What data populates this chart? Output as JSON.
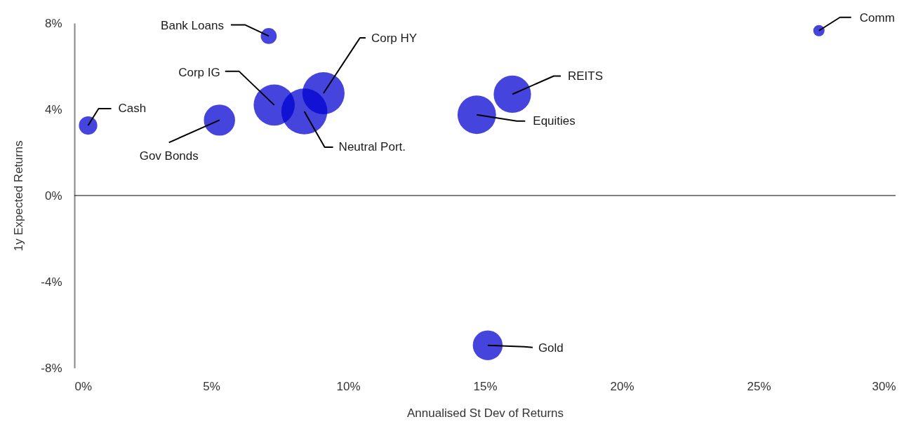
{
  "chart_data": {
    "type": "bubble",
    "xlabel": "Annualised St Dev of Returns",
    "ylabel": "1y Expected Returns",
    "x": [
      0.5,
      5.3,
      7.1,
      7.3,
      8.4,
      9.1,
      14.7,
      16.0,
      27.2,
      15.1
    ],
    "series": [
      {
        "color": "#0000d0",
        "values": [
          3.25,
          3.5,
          7.4,
          4.2,
          3.9,
          4.75,
          3.75,
          4.7,
          7.65,
          -6.95
        ],
        "sizes": [
          0.16,
          0.46,
          0.12,
          0.8,
          1,
          0.84,
          0.7,
          0.66,
          0.06,
          0.42
        ]
      }
    ],
    "annotations": [
      {
        "text": "Cash",
        "x": 0.5,
        "y": 3.25
      },
      {
        "text": "Gov Bonds",
        "x": 5.3,
        "y": 3.5
      },
      {
        "text": "Bank Loans",
        "x": 7.1,
        "y": 7.4
      },
      {
        "text": "Corp IG",
        "x": 7.3,
        "y": 4.2
      },
      {
        "text": "Neutral Port.",
        "x": 8.4,
        "y": 3.9
      },
      {
        "text": "Corp HY",
        "x": 9.1,
        "y": 4.75
      },
      {
        "text": "Equities",
        "x": 14.7,
        "y": 3.75
      },
      {
        "text": "REITS",
        "x": 16.0,
        "y": 4.7
      },
      {
        "text": "Comm",
        "x": 27.2,
        "y": 7.65
      },
      {
        "text": "Gold",
        "x": 15.1,
        "y": -6.95
      }
    ],
    "xlim": [
      0,
      30
    ],
    "ylim": [
      -8,
      8
    ],
    "xticks": [
      {
        "value": 0,
        "label": "0%"
      },
      {
        "value": 5,
        "label": "5%"
      },
      {
        "value": 10,
        "label": "10%"
      },
      {
        "value": 15,
        "label": "15%"
      },
      {
        "value": 20,
        "label": "20%"
      },
      {
        "value": 25,
        "label": "25%"
      },
      {
        "value": 30,
        "label": "30%"
      }
    ],
    "yticks": [
      {
        "value": -8,
        "label": "-8%"
      },
      {
        "value": -4,
        "label": "-4%"
      },
      {
        "value": 0,
        "label": "0%"
      },
      {
        "value": 4,
        "label": "4%"
      },
      {
        "value": 8,
        "label": "8%"
      }
    ],
    "ref_lines": [
      {
        "axis": "y",
        "value": 0,
        "color": "#000000"
      }
    ],
    "grid": false
  }
}
